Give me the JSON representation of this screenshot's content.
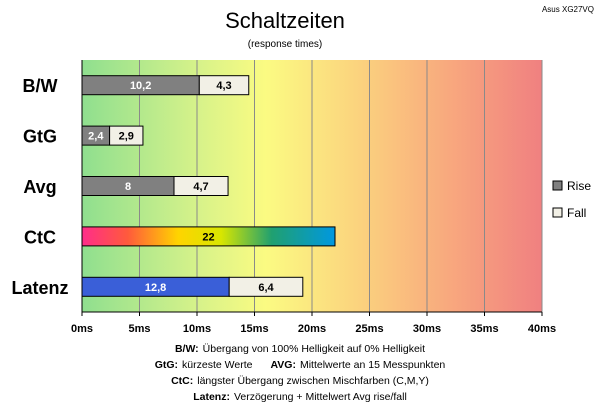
{
  "chart_data": {
    "type": "bar",
    "title": "Schaltzeiten",
    "subtitle": "(response times)",
    "corner_label": "Asus XG27VQ",
    "categories": [
      "B/W",
      "GtG",
      "Avg",
      "CtC",
      "Latenz"
    ],
    "series": [
      {
        "name": "Rise",
        "values": [
          10.2,
          2.4,
          8,
          22,
          12.8
        ],
        "value_labels": [
          "10,2",
          "2,4",
          "8",
          "22",
          "12,8"
        ]
      },
      {
        "name": "Fall",
        "values": [
          4.3,
          2.9,
          4.7,
          null,
          6.4
        ],
        "value_labels": [
          "4,3",
          "2,9",
          "4,7",
          "",
          "6,4"
        ]
      }
    ],
    "stacked": true,
    "orientation": "horizontal",
    "xlim": [
      0,
      40
    ],
    "x_ticks": [
      0,
      5,
      10,
      15,
      20,
      25,
      30,
      35,
      40
    ],
    "x_tick_labels": [
      "0ms",
      "5ms",
      "10ms",
      "15ms",
      "20ms",
      "25ms",
      "30ms",
      "35ms",
      "40ms"
    ],
    "grid": true,
    "legend_position": "right",
    "colors": {
      "rise": "#808080",
      "fall": "#f2f0e6",
      "latenz_rise": "#3a5fd8",
      "bg_green": "#90e090",
      "bg_yellow": "#fafa80",
      "bg_red": "#f08080"
    },
    "notes": [
      {
        "key": "B/W",
        "text": "Übergang von 100% Helligkeit auf 0% Helligkeit"
      },
      {
        "key": "GtG",
        "text": "kürzeste Werte",
        "key2": "AVG",
        "text2": "Mittelwerte an 15 Messpunkten"
      },
      {
        "key": "CtC",
        "text": "längster Übergang zwischen Mischfarben (C,M,Y)"
      },
      {
        "key": "Latenz",
        "text": "Verzögerung + Mittelwert Avg rise/fall"
      }
    ]
  }
}
